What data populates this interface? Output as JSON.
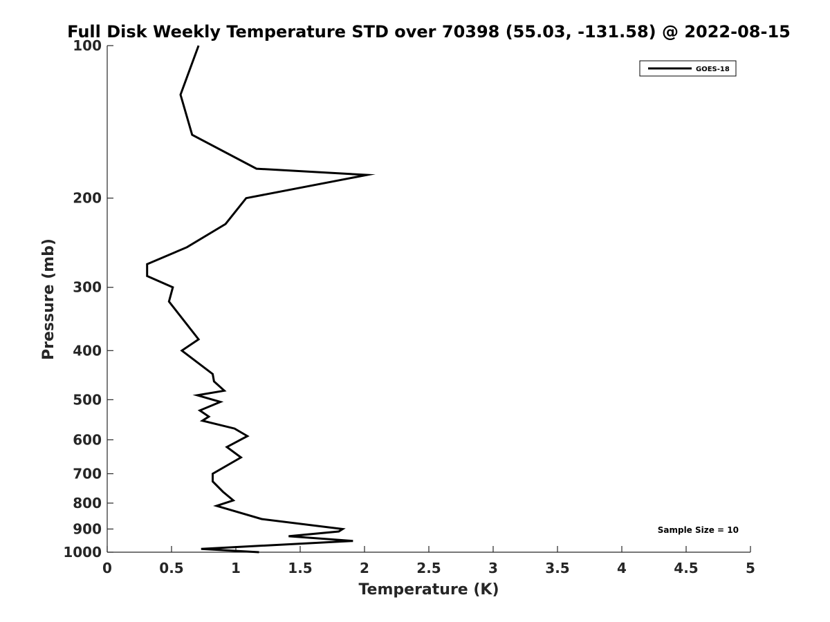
{
  "chart_data": {
    "type": "line",
    "title": "Full Disk Weekly Temperature STD over 70398 (55.03, -131.58) @ 2022-08-15",
    "xlabel": "Temperature (K)",
    "ylabel": "Pressure (mb)",
    "xlim": [
      0,
      5
    ],
    "ylim": [
      100,
      1000
    ],
    "y_scale": "log",
    "y_reversed": true,
    "x_ticks": [
      "0",
      "0.5",
      "1",
      "1.5",
      "2",
      "2.5",
      "3",
      "3.5",
      "4",
      "4.5",
      "5"
    ],
    "y_ticks": [
      "100",
      "200",
      "300",
      "400",
      "500",
      "600",
      "700",
      "800",
      "900",
      "1000"
    ],
    "grid": false,
    "legend_position": "top-right",
    "annotation": "Sample Size = 10",
    "color": "#000000",
    "series": [
      {
        "name": "GOES-18",
        "x": [
          0.71,
          0.57,
          0.66,
          1.16,
          2.02,
          1.08,
          0.92,
          0.62,
          0.31,
          0.31,
          0.51,
          0.48,
          0.71,
          0.58,
          0.82,
          0.83,
          0.91,
          0.7,
          0.88,
          0.72,
          0.79,
          0.74,
          0.99,
          1.09,
          0.93,
          1.04,
          0.82,
          0.82,
          0.9,
          0.98,
          0.85,
          1.2,
          1.83,
          1.8,
          1.41,
          1.91,
          0.73,
          1.18
        ],
        "y": [
          100,
          125,
          150,
          175,
          180,
          200,
          225,
          250,
          270,
          285,
          300,
          320,
          380,
          400,
          445,
          460,
          480,
          490,
          505,
          525,
          540,
          550,
          570,
          590,
          620,
          650,
          700,
          725,
          760,
          790,
          810,
          860,
          900,
          910,
          930,
          950,
          985,
          1000
        ]
      }
    ]
  }
}
